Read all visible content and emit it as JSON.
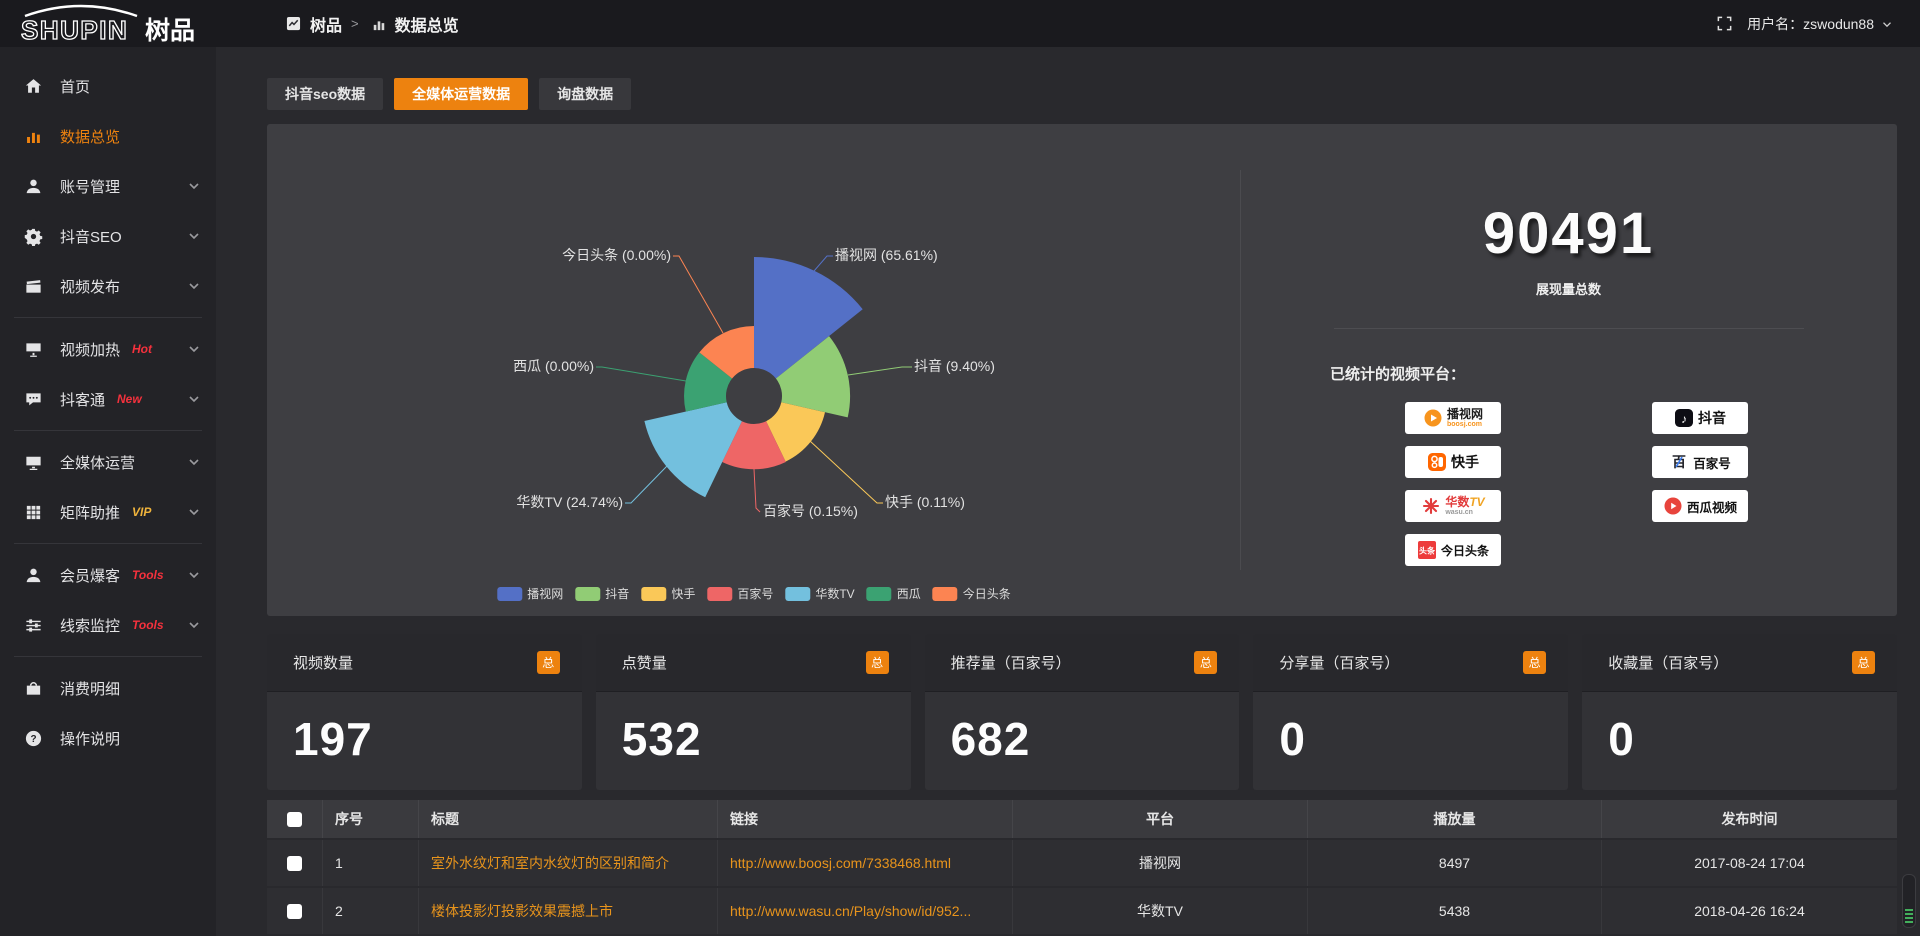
{
  "app": {
    "logo_text": "SHUPIN",
    "logo_suffix": "树品"
  },
  "header": {
    "breadcrumb_root": "树品",
    "breadcrumb_sep": ">",
    "breadcrumb_current": "数据总览",
    "username": "用户名：zswodun88"
  },
  "sidebar": {
    "items": [
      {
        "label": "首页",
        "icon": "home"
      },
      {
        "label": "数据总览",
        "icon": "chart",
        "active": true
      },
      {
        "label": "账号管理",
        "icon": "user",
        "expandable": true
      },
      {
        "label": "抖音SEO",
        "icon": "gear",
        "expandable": true
      },
      {
        "label": "视频发布",
        "icon": "clapper",
        "expandable": true
      },
      {
        "divider": true
      },
      {
        "label": "视频加热",
        "icon": "screenplay",
        "badge": "Hot",
        "badge_color": "#f5313d",
        "expandable": true
      },
      {
        "label": "抖客通",
        "icon": "chat",
        "badge": "New",
        "badge_color": "#f5313d",
        "expandable": true
      },
      {
        "divider": true
      },
      {
        "label": "全媒体运营",
        "icon": "monitor",
        "expandable": true
      },
      {
        "label": "矩阵助推",
        "icon": "grid",
        "badge": "VIP",
        "badge_color": "#f0b43c",
        "expandable": true
      },
      {
        "divider": true
      },
      {
        "label": "会员爆客",
        "icon": "user",
        "badge": "Tools",
        "badge_color": "#f5313d",
        "expandable": true
      },
      {
        "label": "线索监控",
        "icon": "sliders",
        "badge": "Tools",
        "badge_color": "#f5313d",
        "expandable": true
      },
      {
        "divider": true
      },
      {
        "label": "消费明细",
        "icon": "wallet"
      },
      {
        "label": "操作说明",
        "icon": "help"
      }
    ]
  },
  "tabs": [
    {
      "label": "抖音seo数据",
      "active": false
    },
    {
      "label": "全媒体运营数据",
      "active": true
    },
    {
      "label": "询盘数据",
      "active": false
    }
  ],
  "chart_data": {
    "type": "pie",
    "subtype": "nightingale-rose",
    "legend_position": "bottom",
    "items": [
      {
        "name": "播视网",
        "value": 65.61,
        "label": "播视网 (65.61%)",
        "color": "#5470c6"
      },
      {
        "name": "抖音",
        "value": 9.4,
        "label": "抖音 (9.40%)",
        "color": "#91cc75"
      },
      {
        "name": "快手",
        "value": 0.11,
        "label": "快手 (0.11%)",
        "color": "#fac858"
      },
      {
        "name": "百家号",
        "value": 0.15,
        "label": "百家号 (0.15%)",
        "color": "#ee6666"
      },
      {
        "name": "华数TV",
        "value": 24.74,
        "label": "华数TV (24.74%)",
        "color": "#73c0de"
      },
      {
        "name": "西瓜",
        "value": 0.0,
        "label": "西瓜 (0.00%)",
        "color": "#3ba272"
      },
      {
        "name": "今日头条",
        "value": 0.0,
        "label": "今日头条 (0.00%)",
        "color": "#fc8452"
      }
    ]
  },
  "summary": {
    "total_value": "90491",
    "total_label": "展现量总数",
    "platforms_label": "已统计的视频平台：",
    "platform_columns": [
      [
        {
          "name": "播视网",
          "sub": "boosj.com",
          "logo": "boosj"
        },
        {
          "name": "快手",
          "logo": "kuaishou"
        },
        {
          "name": "华数TV",
          "sub": "wasu.cn",
          "logo": "wasu"
        },
        {
          "name": "今日头条",
          "logo": "toutiao"
        }
      ],
      [
        {
          "name": "抖音",
          "logo": "douyin"
        },
        {
          "name": "百家号",
          "logo": "baijia"
        },
        {
          "name": "西瓜视频",
          "logo": "xigua"
        }
      ]
    ]
  },
  "stat_cards": [
    {
      "label": "视频数量",
      "badge": "总",
      "value": "197"
    },
    {
      "label": "点赞量",
      "badge": "总",
      "value": "532"
    },
    {
      "label": "推荐量（百家号）",
      "badge": "总",
      "value": "682"
    },
    {
      "label": "分享量（百家号）",
      "badge": "总",
      "value": "0"
    },
    {
      "label": "收藏量（百家号）",
      "badge": "总",
      "value": "0"
    }
  ],
  "table": {
    "headers": [
      "",
      "序号",
      "标题",
      "链接",
      "平台",
      "播放量",
      "发布时间"
    ],
    "rows": [
      {
        "index": "1",
        "title": "室外水纹灯和室内水纹灯的区别和简介",
        "link": "http://www.boosj.com/7338468.html",
        "platform": "播视网",
        "plays": "8497",
        "time": "2017-08-24 17:04"
      },
      {
        "index": "2",
        "title": "楼体投影灯投影效果震撼上市",
        "link": "http://www.wasu.cn/Play/show/id/952...",
        "platform": "华数TV",
        "plays": "5438",
        "time": "2018-04-26 16:24"
      }
    ]
  },
  "colors": {
    "accent": "#ed820f",
    "link": "#e8941c"
  }
}
